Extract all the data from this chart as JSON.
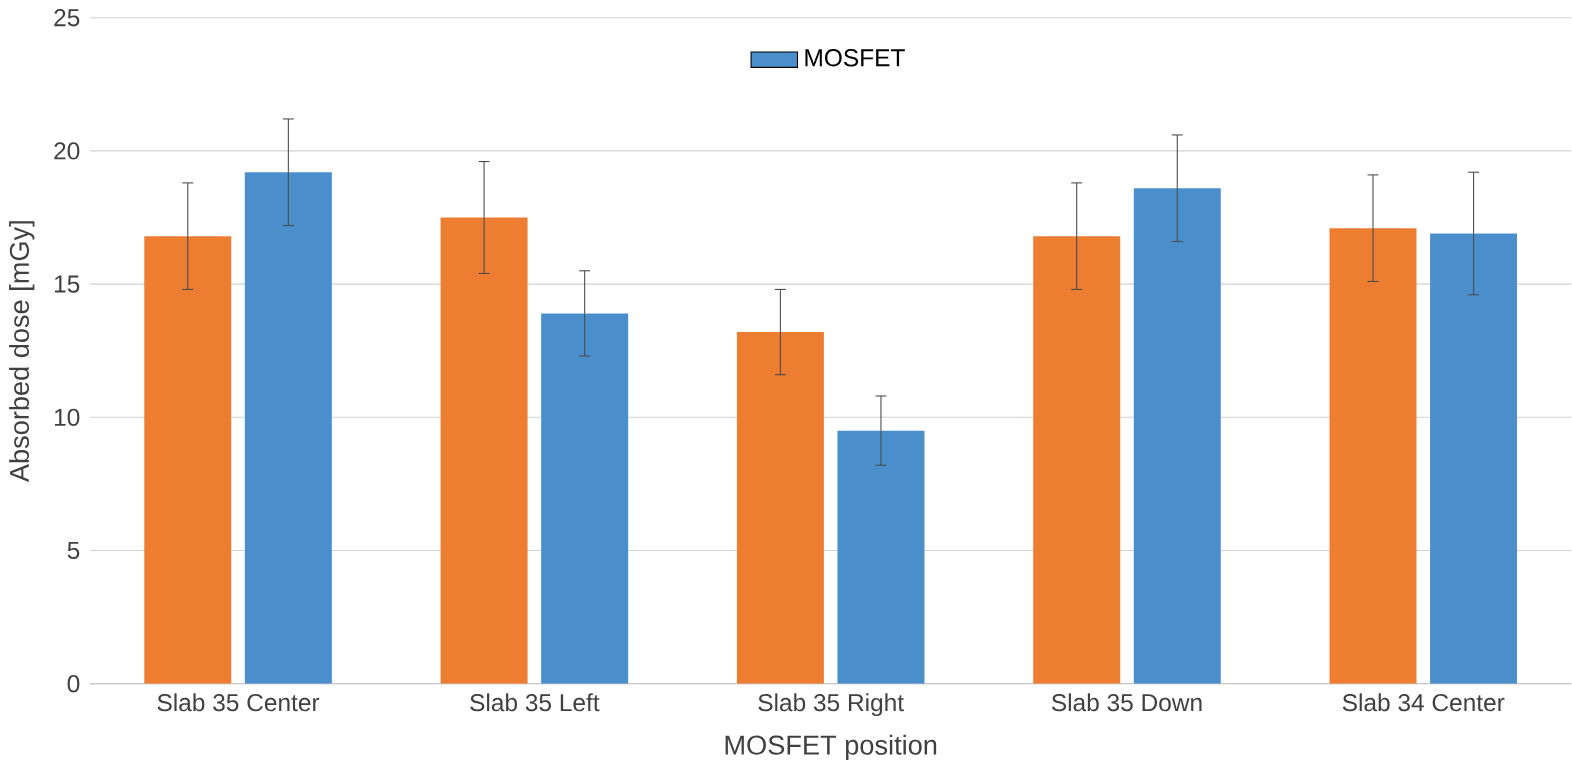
{
  "chart_data": {
    "type": "bar",
    "xlabel": "MOSFET position",
    "ylabel": "Absorbed dose [mGy]",
    "categories": [
      "Slab 35 Center",
      "Slab 35 Left",
      "Slab 35 Right",
      "Slab 35 Down",
      "Slab 34 Center"
    ],
    "series": [
      {
        "color": "#ed7d31",
        "values": [
          16.8,
          17.5,
          13.2,
          16.8,
          17.1
        ],
        "errors": [
          2.0,
          2.1,
          1.6,
          2.0,
          2.0
        ]
      },
      {
        "name": "MOSFET",
        "color": "#4a8fcc",
        "values": [
          19.2,
          13.9,
          9.5,
          18.6,
          16.9
        ],
        "errors": [
          2.0,
          1.6,
          1.3,
          2.0,
          2.3
        ]
      }
    ],
    "ylim": [
      0,
      25
    ],
    "yticks": [
      0,
      5,
      10,
      15,
      20,
      25
    ],
    "grid": "y",
    "legend": "top"
  }
}
